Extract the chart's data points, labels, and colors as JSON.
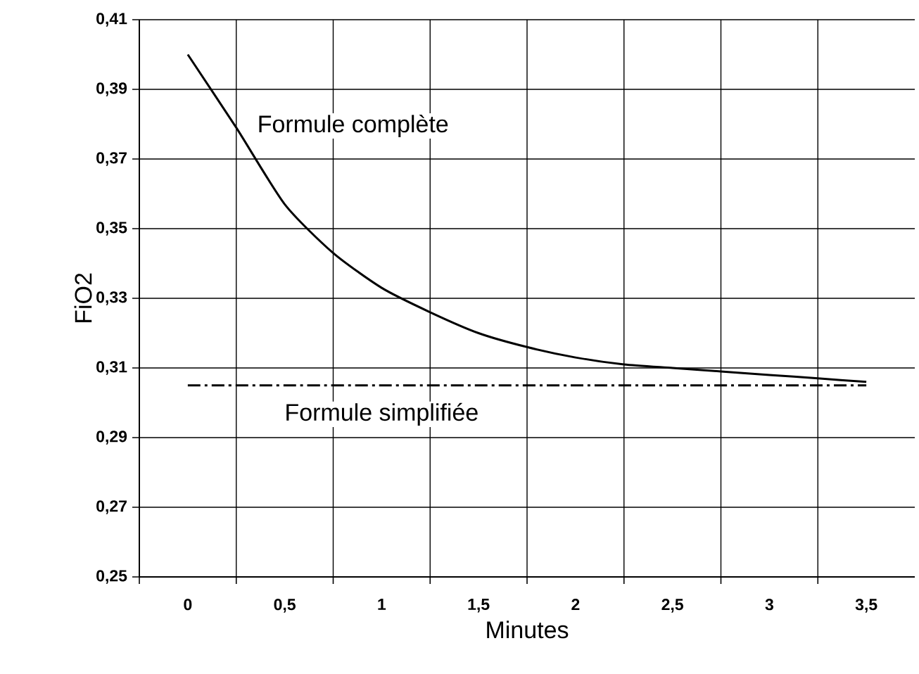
{
  "chart_data": {
    "type": "line",
    "xlabel": "Minutes",
    "ylabel": "FiO2",
    "series": [
      {
        "name": "Formule complète",
        "color": "#000000",
        "line_style": "solid",
        "x": [
          0,
          0.25,
          0.5,
          0.75,
          1,
          1.25,
          1.5,
          1.75,
          2,
          2.25,
          2.5,
          2.75,
          3,
          3.25,
          3.5
        ],
        "values": [
          0.4,
          0.379,
          0.357,
          0.343,
          0.333,
          0.326,
          0.32,
          0.316,
          0.313,
          0.311,
          0.31,
          0.309,
          0.308,
          0.307,
          0.306
        ]
      },
      {
        "name": "Formule simplifiée",
        "color": "#000000",
        "line_style": "dashed",
        "x": [
          0,
          3.5
        ],
        "values": [
          0.305,
          0.305
        ]
      }
    ],
    "xlim": [
      -0.25,
      3.75
    ],
    "xticks": [
      {
        "value": -0.25,
        "label": null
      },
      {
        "value": 0,
        "label": "0"
      },
      {
        "value": 0.25,
        "label": null
      },
      {
        "value": 0.5,
        "label": "0,5"
      },
      {
        "value": 0.75,
        "label": null
      },
      {
        "value": 1,
        "label": "1"
      },
      {
        "value": 1.25,
        "label": null
      },
      {
        "value": 1.5,
        "label": "1,5"
      },
      {
        "value": 1.75,
        "label": null
      },
      {
        "value": 2,
        "label": "2"
      },
      {
        "value": 2.25,
        "label": null
      },
      {
        "value": 2.5,
        "label": "2,5"
      },
      {
        "value": 2.75,
        "label": null
      },
      {
        "value": 3,
        "label": "3"
      },
      {
        "value": 3.25,
        "label": null
      },
      {
        "value": 3.5,
        "label": "3,5"
      }
    ],
    "ylim": [
      0.25,
      0.41
    ],
    "yticks": [
      {
        "value": 0.25,
        "label": "0,25"
      },
      {
        "value": 0.27,
        "label": "0,27"
      },
      {
        "value": 0.29,
        "label": "0,29"
      },
      {
        "value": 0.31,
        "label": "0,31"
      },
      {
        "value": 0.33,
        "label": "0,33"
      },
      {
        "value": 0.35,
        "label": "0,35"
      },
      {
        "value": 0.37,
        "label": "0,37"
      },
      {
        "value": 0.39,
        "label": "0,39"
      },
      {
        "value": 0.41,
        "label": "0,41"
      }
    ],
    "grid": true,
    "marker": "none"
  }
}
